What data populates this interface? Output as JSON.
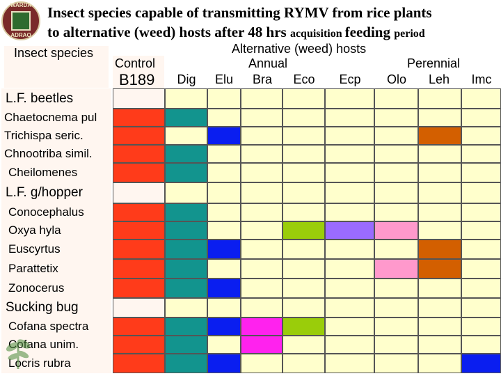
{
  "title": {
    "line1": "Insect species capable of transmitting RYMV from rice plants",
    "line2_main": "to alternative (weed) hosts after 48 hrs ",
    "line2_small1": "acquisition ",
    "line2_mid": "feeding ",
    "line2_small2": "period"
  },
  "logo": {
    "top_text": "WARDA",
    "bottom_text": "ADRAO"
  },
  "headers": {
    "insect_species": "Insect species",
    "control": "Control",
    "b189": "B189",
    "alternative": "Alternative (weed) hosts",
    "annual": "Annual",
    "perennial": "Perennial",
    "hosts": [
      "Dig",
      "Elu",
      "Bra",
      "Eco",
      "Ecp",
      "Olo",
      "Leh",
      "Imc"
    ]
  },
  "colors": {
    "red": "#ff3b1a",
    "teal": "#12948e",
    "blue": "#0a1ef0",
    "orange": "#d35f00",
    "lime": "#9acd0a",
    "purple": "#9a6bff",
    "pink": "#ff99cc",
    "magenta": "#ff22ee",
    "empty": "#ffffcc",
    "grid": "#555555"
  },
  "rows": [
    {
      "label": "L.F. beetles",
      "group": true,
      "cells": []
    },
    {
      "label": "Chaetocnema pul",
      "group": false,
      "cells": [
        "red",
        "teal",
        "",
        "",
        "",
        "",
        "",
        "",
        ""
      ]
    },
    {
      "label": "Trichispa seric.",
      "group": false,
      "cells": [
        "red",
        "",
        "blue",
        "",
        "",
        "",
        "",
        "orange",
        ""
      ]
    },
    {
      "label": "Chnootriba simil.",
      "group": false,
      "cells": [
        "red",
        "teal",
        "",
        "",
        "",
        "",
        "",
        "",
        ""
      ]
    },
    {
      "label": "Cheilomenes",
      "group": false,
      "cells": [
        "red",
        "teal",
        "",
        "",
        "",
        "",
        "",
        "",
        ""
      ]
    },
    {
      "label": "L.F. g/hopper",
      "group": true,
      "cells": []
    },
    {
      "label": "Conocephalus",
      "group": false,
      "cells": [
        "red",
        "teal",
        "",
        "",
        "",
        "",
        "",
        "",
        ""
      ]
    },
    {
      "label": "Oxya hyla",
      "group": false,
      "cells": [
        "red",
        "teal",
        "",
        "",
        "lime",
        "purple",
        "pink",
        "",
        ""
      ]
    },
    {
      "label": "Euscyrtus",
      "group": false,
      "cells": [
        "red",
        "teal",
        "blue",
        "",
        "",
        "",
        "",
        "orange",
        ""
      ]
    },
    {
      "label": "Parattetix",
      "group": false,
      "cells": [
        "red",
        "teal",
        "",
        "",
        "",
        "",
        "pink",
        "orange",
        ""
      ]
    },
    {
      "label": "Zonocerus",
      "group": false,
      "cells": [
        "red",
        "teal",
        "blue",
        "",
        "",
        "",
        "",
        "",
        ""
      ]
    },
    {
      "label": "Sucking bug",
      "group": true,
      "cells": []
    },
    {
      "label": "Cofana spectra",
      "group": false,
      "cells": [
        "red",
        "teal",
        "blue",
        "magenta",
        "lime",
        "",
        "",
        "",
        ""
      ]
    },
    {
      "label": "Cofana unim.",
      "group": false,
      "cells": [
        "red",
        "teal",
        "",
        "magenta",
        "",
        "",
        "",
        "",
        ""
      ]
    },
    {
      "label": "Locris rubra",
      "group": false,
      "cells": [
        "red",
        "teal",
        "blue",
        "",
        "",
        "",
        "",
        "",
        "blue"
      ]
    }
  ]
}
